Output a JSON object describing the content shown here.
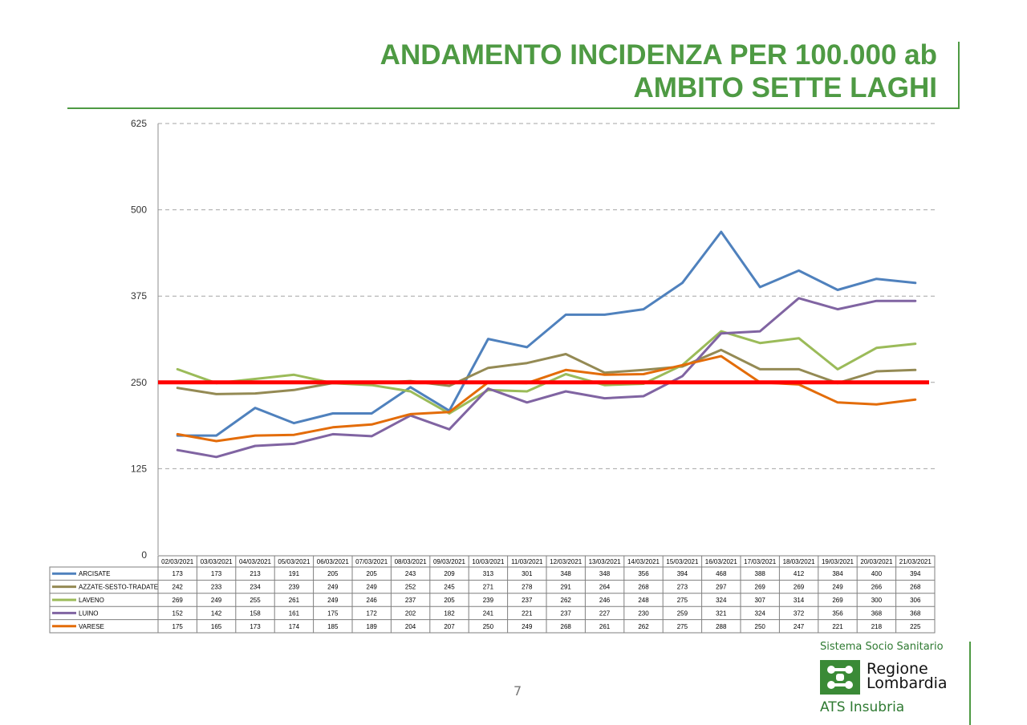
{
  "title": {
    "line1": "ANDAMENTO INCIDENZA PER 100.000 ab",
    "line2": "AMBITO SETTE LAGHI"
  },
  "footer": {
    "page_number": "7",
    "system_label": "Sistema Socio Sanitario",
    "region_line1": "Regione",
    "region_line2": "Lombardia",
    "agency": "ATS Insubria"
  },
  "colors": {
    "title": "#4e9a43",
    "threshold": "#ff0000"
  },
  "chart_data": {
    "type": "line",
    "title": "",
    "xlabel": "",
    "ylabel": "",
    "ylim": [
      0,
      625
    ],
    "yticks": [
      0,
      125,
      250,
      375,
      500,
      625
    ],
    "grid": true,
    "legend": "data-table-below",
    "threshold": 250,
    "categories": [
      "02/03/2021",
      "03/03/2021",
      "04/03/2021",
      "05/03/2021",
      "06/03/2021",
      "07/03/2021",
      "08/03/2021",
      "09/03/2021",
      "10/03/2021",
      "11/03/2021",
      "12/03/2021",
      "13/03/2021",
      "14/03/2021",
      "15/03/2021",
      "16/03/2021",
      "17/03/2021",
      "18/03/2021",
      "19/03/2021",
      "20/03/2021",
      "21/03/2021"
    ],
    "series": [
      {
        "name": "ARCISATE",
        "color": "#4f81bd",
        "values": [
          173,
          173,
          213,
          191,
          205,
          205,
          243,
          209,
          313,
          301,
          348,
          348,
          356,
          394,
          468,
          388,
          412,
          384,
          400,
          394
        ]
      },
      {
        "name": "AZZATE-SESTO-TRADATE",
        "color": "#948a54",
        "values": [
          242,
          233,
          234,
          239,
          249,
          249,
          252,
          245,
          271,
          278,
          291,
          264,
          268,
          273,
          297,
          269,
          269,
          249,
          266,
          268
        ]
      },
      {
        "name": "LAVENO",
        "color": "#9bbb59",
        "values": [
          269,
          249,
          255,
          261,
          249,
          246,
          237,
          205,
          239,
          237,
          262,
          246,
          248,
          275,
          324,
          307,
          314,
          269,
          300,
          306
        ]
      },
      {
        "name": "LUINO",
        "color": "#8064a2",
        "values": [
          152,
          142,
          158,
          161,
          175,
          172,
          202,
          182,
          241,
          221,
          237,
          227,
          230,
          259,
          321,
          324,
          372,
          356,
          368,
          368
        ]
      },
      {
        "name": "VARESE",
        "color": "#e36c09",
        "values": [
          175,
          165,
          173,
          174,
          185,
          189,
          204,
          207,
          250,
          249,
          268,
          261,
          262,
          275,
          288,
          250,
          247,
          221,
          218,
          225
        ]
      }
    ]
  }
}
